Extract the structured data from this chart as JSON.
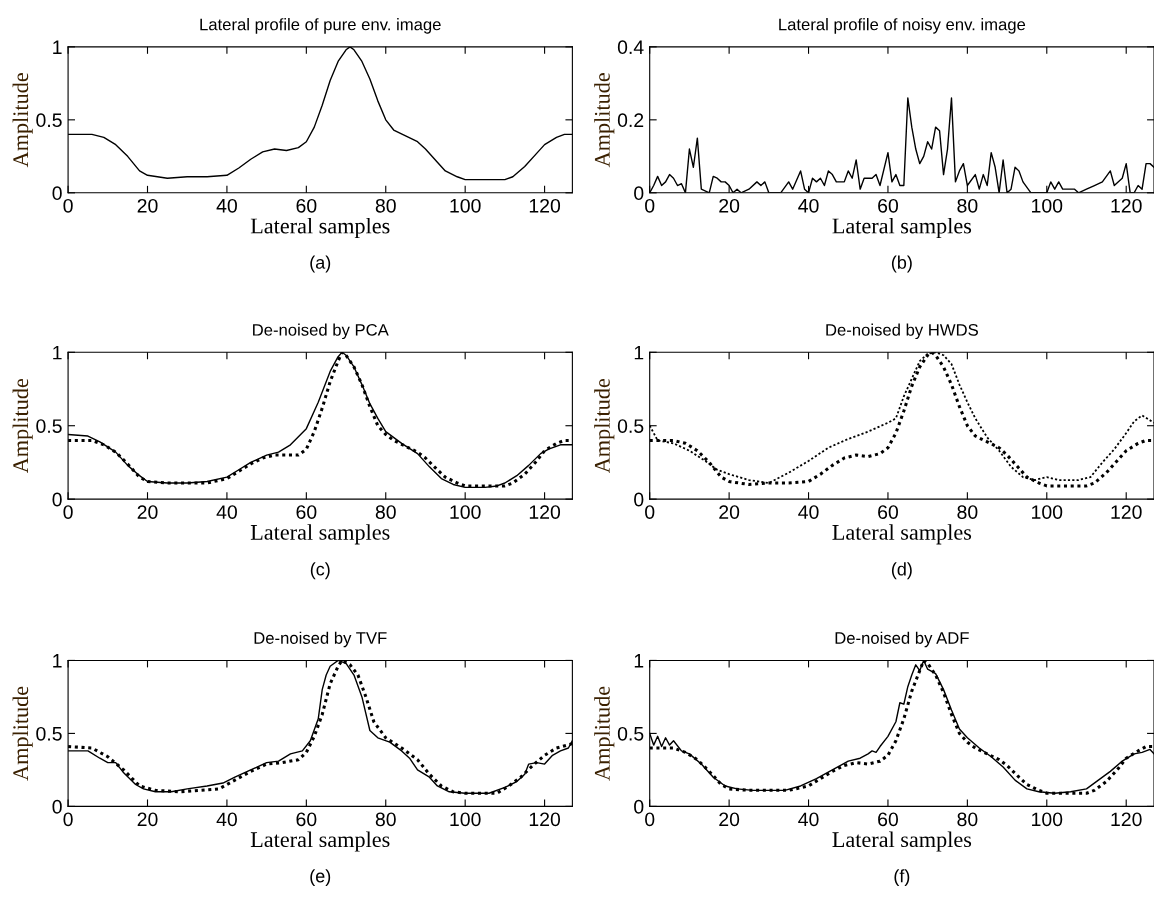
{
  "chart_data": [
    {
      "type": "line",
      "title": "Lateral profile of pure env. image",
      "xlabel": "Lateral samples",
      "ylabel": "Amplitude",
      "annotations": [
        "(a)"
      ],
      "xlim": [
        0,
        127
      ],
      "ylim": [
        0,
        1
      ],
      "xticks": [
        0,
        20,
        40,
        60,
        80,
        100,
        120
      ],
      "yticks": [
        0,
        0.5,
        1
      ],
      "grid": false,
      "series": [
        {
          "color": "#000000",
          "line_style": "solid",
          "x": [
            0,
            6,
            9,
            12,
            15,
            18,
            20,
            25,
            30,
            35,
            40,
            43,
            46,
            49,
            52,
            55,
            58,
            60,
            62,
            64,
            66,
            68,
            70,
            71,
            72,
            74,
            76,
            78,
            80,
            82,
            85,
            88,
            90,
            93,
            95,
            98,
            100,
            105,
            110,
            112,
            115,
            118,
            120,
            123,
            125,
            127
          ],
          "values": [
            0.4,
            0.4,
            0.38,
            0.33,
            0.25,
            0.15,
            0.12,
            0.1,
            0.11,
            0.11,
            0.12,
            0.17,
            0.23,
            0.28,
            0.3,
            0.29,
            0.31,
            0.35,
            0.45,
            0.6,
            0.77,
            0.9,
            0.98,
            1.0,
            0.98,
            0.9,
            0.78,
            0.63,
            0.5,
            0.43,
            0.39,
            0.35,
            0.3,
            0.21,
            0.15,
            0.11,
            0.09,
            0.09,
            0.09,
            0.11,
            0.18,
            0.27,
            0.33,
            0.38,
            0.4,
            0.4
          ]
        }
      ]
    },
    {
      "type": "line",
      "title": "Lateral profile of noisy env. image",
      "xlabel": "Lateral samples",
      "ylabel": "Amplitude",
      "annotations": [
        "(b)"
      ],
      "xlim": [
        0,
        127
      ],
      "ylim": [
        0,
        0.4
      ],
      "xticks": [
        0,
        20,
        40,
        60,
        80,
        100,
        120
      ],
      "yticks": [
        0,
        0.2,
        0.4
      ],
      "grid": false,
      "series": [
        {
          "color": "#000000",
          "line_style": "solid",
          "x": [
            0,
            1,
            2,
            3,
            4,
            5,
            6,
            7,
            8,
            9,
            10,
            11,
            12,
            13,
            15,
            16,
            17,
            18,
            19,
            20,
            21,
            22,
            23,
            25,
            27,
            28,
            29,
            30,
            33,
            35,
            36,
            38,
            39,
            40,
            41,
            42,
            43,
            44,
            45,
            46,
            47,
            49,
            50,
            51,
            52,
            53,
            54,
            56,
            57,
            58,
            60,
            61,
            62,
            63,
            64,
            65,
            66,
            67,
            68,
            69,
            70,
            71,
            72,
            73,
            74,
            75,
            76,
            77,
            78,
            79,
            80,
            82,
            83,
            84,
            85,
            86,
            87,
            88,
            89,
            90,
            91,
            92,
            93,
            94,
            96,
            100,
            101,
            102,
            103,
            104,
            107,
            108,
            110,
            112,
            114,
            116,
            117,
            119,
            120,
            121,
            122,
            123,
            124,
            125,
            126,
            127
          ],
          "values": [
            0,
            0.02,
            0.045,
            0.02,
            0.03,
            0.05,
            0.04,
            0.02,
            0.025,
            0,
            0.12,
            0.07,
            0.15,
            0.01,
            0,
            0.045,
            0.04,
            0.03,
            0.03,
            0.02,
            0,
            0.01,
            0,
            0.01,
            0.03,
            0.02,
            0.03,
            0,
            0,
            0.03,
            0.01,
            0.06,
            0.01,
            0,
            0.04,
            0.03,
            0.04,
            0.02,
            0.06,
            0.05,
            0.03,
            0.03,
            0.06,
            0.04,
            0.09,
            0.01,
            0.04,
            0.04,
            0.05,
            0.02,
            0.11,
            0.03,
            0.05,
            0.02,
            0.02,
            0.26,
            0.18,
            0.12,
            0.08,
            0.1,
            0.14,
            0.12,
            0.18,
            0.17,
            0.05,
            0.12,
            0.26,
            0.03,
            0.06,
            0.08,
            0.02,
            0.05,
            0.01,
            0.05,
            0.02,
            0.11,
            0.07,
            0,
            0.09,
            0,
            0.01,
            0.07,
            0.06,
            0.03,
            0,
            0,
            0.03,
            0.01,
            0.03,
            0.01,
            0.01,
            0,
            0.01,
            0.02,
            0.03,
            0.06,
            0.02,
            0.04,
            0.08,
            0,
            0,
            0.02,
            0.01,
            0.08,
            0.08,
            0.07
          ]
        }
      ]
    },
    {
      "type": "line",
      "title": "De-noised by PCA",
      "xlabel": "Lateral samples",
      "ylabel": "Amplitude",
      "annotations": [
        "(c)"
      ],
      "xlim": [
        0,
        127
      ],
      "ylim": [
        0,
        1
      ],
      "xticks": [
        0,
        20,
        40,
        60,
        80,
        100,
        120
      ],
      "yticks": [
        0,
        0.5,
        1
      ],
      "grid": false,
      "series": [
        {
          "color": "#000000",
          "line_style": "dotted",
          "x": [
            0,
            6,
            9,
            12,
            15,
            18,
            20,
            25,
            30,
            35,
            40,
            43,
            46,
            49,
            52,
            55,
            58,
            60,
            62,
            64,
            66,
            68,
            69,
            70,
            72,
            74,
            76,
            78,
            80,
            82,
            85,
            88,
            90,
            93,
            95,
            98,
            100,
            105,
            110,
            112,
            115,
            118,
            120,
            123,
            125,
            127
          ],
          "values": [
            0.4,
            0.4,
            0.37,
            0.32,
            0.24,
            0.15,
            0.12,
            0.11,
            0.11,
            0.11,
            0.14,
            0.19,
            0.24,
            0.28,
            0.3,
            0.3,
            0.3,
            0.34,
            0.46,
            0.62,
            0.8,
            0.94,
            1.0,
            0.98,
            0.9,
            0.78,
            0.63,
            0.5,
            0.44,
            0.4,
            0.36,
            0.32,
            0.28,
            0.2,
            0.15,
            0.11,
            0.09,
            0.09,
            0.09,
            0.11,
            0.17,
            0.26,
            0.33,
            0.38,
            0.4,
            0.4
          ]
        },
        {
          "color": "#000000",
          "line_style": "solid",
          "x": [
            0,
            5,
            8,
            12,
            15,
            18,
            20,
            25,
            30,
            35,
            40,
            43,
            46,
            50,
            53,
            56,
            60,
            63,
            66,
            68,
            69,
            70,
            72,
            74,
            76,
            78,
            80,
            84,
            88,
            91,
            94,
            97,
            100,
            105,
            108,
            110,
            113,
            116,
            119,
            121,
            124,
            127
          ],
          "values": [
            0.44,
            0.43,
            0.39,
            0.32,
            0.23,
            0.16,
            0.12,
            0.11,
            0.11,
            0.12,
            0.15,
            0.2,
            0.25,
            0.3,
            0.32,
            0.37,
            0.48,
            0.66,
            0.87,
            0.97,
            1.0,
            0.98,
            0.9,
            0.78,
            0.65,
            0.55,
            0.46,
            0.38,
            0.31,
            0.22,
            0.14,
            0.1,
            0.08,
            0.08,
            0.09,
            0.11,
            0.16,
            0.23,
            0.31,
            0.34,
            0.37,
            0.37
          ]
        }
      ]
    },
    {
      "type": "line",
      "title": "De-noised by HWDS",
      "xlabel": "Lateral samples",
      "ylabel": "Amplitude",
      "annotations": [
        "(d)"
      ],
      "xlim": [
        0,
        127
      ],
      "ylim": [
        0,
        1
      ],
      "xticks": [
        0,
        20,
        40,
        60,
        80,
        100,
        120
      ],
      "yticks": [
        0,
        0.5,
        1
      ],
      "grid": false,
      "series": [
        {
          "color": "#000000",
          "line_style": "dotted",
          "x": [
            0,
            6,
            9,
            12,
            15,
            18,
            20,
            25,
            30,
            35,
            40,
            43,
            46,
            49,
            52,
            55,
            58,
            60,
            62,
            64,
            66,
            68,
            70,
            71,
            72,
            74,
            76,
            78,
            80,
            82,
            85,
            88,
            90,
            93,
            95,
            98,
            100,
            105,
            110,
            112,
            115,
            118,
            120,
            123,
            125,
            127
          ],
          "values": [
            0.4,
            0.4,
            0.38,
            0.33,
            0.25,
            0.15,
            0.12,
            0.1,
            0.11,
            0.11,
            0.12,
            0.17,
            0.23,
            0.28,
            0.3,
            0.29,
            0.31,
            0.35,
            0.45,
            0.6,
            0.77,
            0.9,
            0.98,
            1.0,
            0.98,
            0.9,
            0.78,
            0.63,
            0.5,
            0.43,
            0.39,
            0.35,
            0.3,
            0.21,
            0.15,
            0.11,
            0.09,
            0.09,
            0.09,
            0.11,
            0.18,
            0.27,
            0.33,
            0.38,
            0.4,
            0.4
          ]
        },
        {
          "color": "#000000",
          "line_style": "dashed",
          "x": [
            0,
            2,
            6,
            10,
            14,
            17,
            20,
            25,
            30,
            35,
            40,
            45,
            50,
            55,
            60,
            62,
            64,
            66,
            68,
            70,
            72,
            74,
            76,
            78,
            80,
            82,
            85,
            88,
            91,
            94,
            97,
            100,
            103,
            108,
            111,
            114,
            117,
            120,
            122,
            124,
            127
          ],
          "values": [
            0.5,
            0.4,
            0.38,
            0.33,
            0.26,
            0.2,
            0.17,
            0.13,
            0.11,
            0.18,
            0.26,
            0.35,
            0.41,
            0.46,
            0.52,
            0.55,
            0.7,
            0.82,
            0.94,
            0.99,
            1.0,
            0.98,
            0.92,
            0.78,
            0.66,
            0.55,
            0.42,
            0.33,
            0.22,
            0.15,
            0.13,
            0.15,
            0.13,
            0.13,
            0.15,
            0.25,
            0.34,
            0.45,
            0.53,
            0.57,
            0.52
          ]
        }
      ]
    },
    {
      "type": "line",
      "title": "De-noised by TVF",
      "xlabel": "Lateral samples",
      "ylabel": "Amplitude",
      "annotations": [
        "(e)"
      ],
      "xlim": [
        0,
        127
      ],
      "ylim": [
        0,
        1
      ],
      "xticks": [
        0,
        20,
        40,
        60,
        80,
        100,
        120
      ],
      "yticks": [
        0,
        0.5,
        1
      ],
      "grid": false,
      "series": [
        {
          "color": "#000000",
          "line_style": "dotted",
          "x": [
            0,
            6,
            10,
            14,
            18,
            22,
            28,
            33,
            38,
            42,
            46,
            50,
            54,
            58,
            60,
            62,
            64,
            66,
            68,
            69,
            71,
            73,
            75,
            77,
            80,
            84,
            88,
            91,
            94,
            97,
            100,
            105,
            108,
            111,
            114,
            117,
            120,
            123,
            127
          ],
          "values": [
            0.41,
            0.4,
            0.34,
            0.25,
            0.14,
            0.11,
            0.1,
            0.11,
            0.12,
            0.18,
            0.24,
            0.29,
            0.3,
            0.32,
            0.37,
            0.48,
            0.63,
            0.84,
            0.96,
            1.0,
            0.97,
            0.9,
            0.75,
            0.58,
            0.47,
            0.4,
            0.32,
            0.22,
            0.14,
            0.1,
            0.09,
            0.09,
            0.09,
            0.14,
            0.2,
            0.28,
            0.35,
            0.4,
            0.43
          ]
        },
        {
          "color": "#000000",
          "line_style": "solid",
          "x": [
            0,
            5,
            8,
            10,
            12,
            14,
            17,
            19,
            22,
            26,
            30,
            35,
            39,
            42,
            46,
            50,
            53,
            56,
            59,
            61,
            63,
            64,
            65,
            66,
            68,
            70,
            72,
            74,
            76,
            78,
            81,
            84,
            86,
            88,
            91,
            93,
            96,
            100,
            106,
            110,
            113,
            115,
            116,
            118,
            120,
            122,
            124,
            126,
            127
          ],
          "values": [
            0.38,
            0.38,
            0.33,
            0.3,
            0.3,
            0.23,
            0.15,
            0.12,
            0.1,
            0.1,
            0.12,
            0.14,
            0.16,
            0.2,
            0.25,
            0.3,
            0.31,
            0.36,
            0.38,
            0.45,
            0.6,
            0.8,
            0.9,
            0.96,
            1.0,
            0.98,
            0.9,
            0.75,
            0.52,
            0.47,
            0.44,
            0.38,
            0.33,
            0.25,
            0.2,
            0.14,
            0.1,
            0.09,
            0.09,
            0.13,
            0.17,
            0.22,
            0.29,
            0.3,
            0.29,
            0.35,
            0.38,
            0.4,
            0.45
          ]
        }
      ]
    },
    {
      "type": "line",
      "title": "De-noised by ADF",
      "xlabel": "Lateral samples",
      "ylabel": "Amplitude",
      "annotations": [
        "(f)"
      ],
      "xlim": [
        0,
        127
      ],
      "ylim": [
        0,
        1
      ],
      "xticks": [
        0,
        20,
        40,
        60,
        80,
        100,
        120
      ],
      "yticks": [
        0,
        0.5,
        1
      ],
      "grid": false,
      "series": [
        {
          "color": "#000000",
          "line_style": "dotted",
          "x": [
            0,
            6,
            9,
            12,
            15,
            18,
            20,
            25,
            30,
            35,
            40,
            43,
            46,
            49,
            52,
            55,
            58,
            60,
            62,
            64,
            66,
            68,
            69,
            70,
            72,
            74,
            76,
            78,
            80,
            82,
            85,
            88,
            90,
            93,
            95,
            98,
            100,
            105,
            110,
            112,
            115,
            118,
            120,
            123,
            125,
            127
          ],
          "values": [
            0.4,
            0.4,
            0.37,
            0.32,
            0.24,
            0.15,
            0.12,
            0.11,
            0.11,
            0.11,
            0.14,
            0.19,
            0.24,
            0.28,
            0.3,
            0.29,
            0.31,
            0.35,
            0.45,
            0.6,
            0.79,
            0.93,
            1.0,
            0.98,
            0.9,
            0.78,
            0.63,
            0.5,
            0.44,
            0.4,
            0.36,
            0.32,
            0.28,
            0.2,
            0.15,
            0.11,
            0.09,
            0.09,
            0.09,
            0.11,
            0.17,
            0.26,
            0.33,
            0.38,
            0.41,
            0.41
          ]
        },
        {
          "color": "#000000",
          "line_style": "solid",
          "x": [
            0,
            1,
            2,
            3,
            4,
            5,
            6,
            8,
            10,
            13,
            16,
            19,
            22,
            26,
            30,
            34,
            38,
            42,
            46,
            50,
            53,
            55,
            56,
            57,
            58,
            60,
            62,
            63,
            64,
            65,
            66,
            67,
            68,
            69,
            70,
            72,
            74,
            76,
            78,
            80,
            83,
            86,
            89,
            92,
            95,
            98,
            102,
            106,
            110,
            113,
            116,
            119,
            122,
            124,
            126,
            127
          ],
          "values": [
            0.5,
            0.42,
            0.48,
            0.41,
            0.47,
            0.42,
            0.45,
            0.38,
            0.36,
            0.29,
            0.2,
            0.14,
            0.12,
            0.11,
            0.11,
            0.11,
            0.14,
            0.19,
            0.25,
            0.31,
            0.33,
            0.36,
            0.38,
            0.37,
            0.41,
            0.48,
            0.58,
            0.71,
            0.7,
            0.82,
            0.9,
            0.97,
            0.93,
            1.0,
            0.94,
            0.91,
            0.8,
            0.66,
            0.53,
            0.47,
            0.4,
            0.34,
            0.27,
            0.18,
            0.12,
            0.1,
            0.09,
            0.1,
            0.12,
            0.18,
            0.24,
            0.31,
            0.36,
            0.37,
            0.39,
            0.36
          ]
        }
      ]
    }
  ]
}
